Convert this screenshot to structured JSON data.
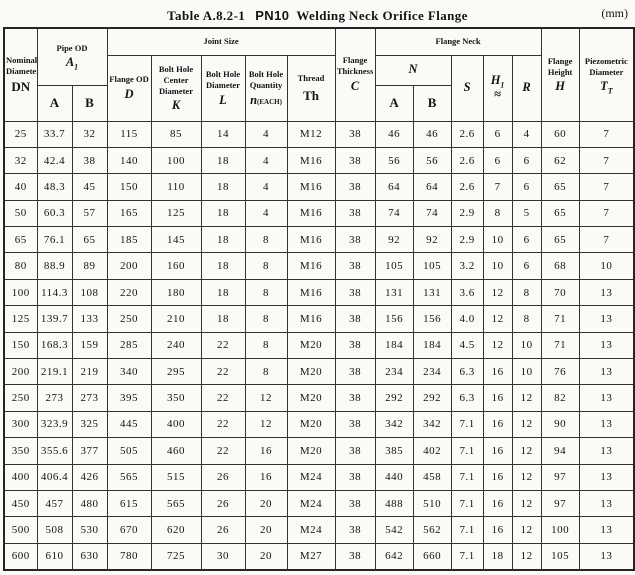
{
  "title": {
    "table_no": "Table A.8.2-1",
    "pn": "PN10",
    "name": "Welding Neck Orifice Flange",
    "unit": "(mm)"
  },
  "header": {
    "nominal_diameter": {
      "line1": "Nominal",
      "line2": "Diameter",
      "symbol": "DN"
    },
    "pipe_od": {
      "label": "Pipe OD",
      "symbol": "A",
      "sub": "1",
      "col_a": "A",
      "col_b": "B"
    },
    "joint_size": {
      "label": "Joint Size",
      "flange_od": {
        "label": "Flange OD",
        "symbol": "D"
      },
      "bolt_hole_center": {
        "line1": "Bolt Hole",
        "line2": "Center",
        "line3": "Diameter",
        "symbol": "K"
      },
      "bolt_hole_diameter": {
        "line1": "Bolt Hole",
        "line2": "Diameter",
        "symbol": "L"
      },
      "bolt_hole_quantity": {
        "line1": "Bolt Hole",
        "line2": "Quantity",
        "symbol": "n",
        "suffix": "(EACH)"
      },
      "thread": {
        "label": "Thread",
        "symbol": "Th"
      }
    },
    "flange_thickness": {
      "line1": "Flange",
      "line2": "Thickness",
      "symbol": "C"
    },
    "flange_neck": {
      "label": "Flange Neck",
      "n": {
        "symbol": "N",
        "col_a": "A",
        "col_b": "B"
      },
      "s": "S",
      "h1": {
        "symbol": "H",
        "sub": "1",
        "approx": "≈"
      },
      "r": "R"
    },
    "flange_height": {
      "line1": "Flange",
      "line2": "Height",
      "symbol": "H"
    },
    "piezometric": {
      "line1": "Piezometric",
      "line2": "Diameter",
      "symbol": "T",
      "sub": "T"
    }
  },
  "columns": [
    "dn",
    "pipe-od-a",
    "pipe-od-b",
    "flange-od-d",
    "bolt-hole-center-k",
    "bolt-hole-dia-l",
    "bolt-hole-qty-n",
    "thread-th",
    "thickness-c",
    "neck-n-a",
    "neck-n-b",
    "neck-s",
    "neck-h1",
    "neck-r",
    "height-h",
    "piezometric-tt"
  ],
  "rows": [
    [
      "25",
      "33.7",
      "32",
      "115",
      "85",
      "14",
      "4",
      "M12",
      "38",
      "46",
      "46",
      "2.6",
      "6",
      "4",
      "60",
      "7"
    ],
    [
      "32",
      "42.4",
      "38",
      "140",
      "100",
      "18",
      "4",
      "M16",
      "38",
      "56",
      "56",
      "2.6",
      "6",
      "6",
      "62",
      "7"
    ],
    [
      "40",
      "48.3",
      "45",
      "150",
      "110",
      "18",
      "4",
      "M16",
      "38",
      "64",
      "64",
      "2.6",
      "7",
      "6",
      "65",
      "7"
    ],
    [
      "50",
      "60.3",
      "57",
      "165",
      "125",
      "18",
      "4",
      "M16",
      "38",
      "74",
      "74",
      "2.9",
      "8",
      "5",
      "65",
      "7"
    ],
    [
      "65",
      "76.1",
      "65",
      "185",
      "145",
      "18",
      "8",
      "M16",
      "38",
      "92",
      "92",
      "2.9",
      "10",
      "6",
      "65",
      "7"
    ],
    [
      "80",
      "88.9",
      "89",
      "200",
      "160",
      "18",
      "8",
      "M16",
      "38",
      "105",
      "105",
      "3.2",
      "10",
      "6",
      "68",
      "10"
    ],
    [
      "100",
      "114.3",
      "108",
      "220",
      "180",
      "18",
      "8",
      "M16",
      "38",
      "131",
      "131",
      "3.6",
      "12",
      "8",
      "70",
      "13"
    ],
    [
      "125",
      "139.7",
      "133",
      "250",
      "210",
      "18",
      "8",
      "M16",
      "38",
      "156",
      "156",
      "4.0",
      "12",
      "8",
      "71",
      "13"
    ],
    [
      "150",
      "168.3",
      "159",
      "285",
      "240",
      "22",
      "8",
      "M20",
      "38",
      "184",
      "184",
      "4.5",
      "12",
      "10",
      "71",
      "13"
    ],
    [
      "200",
      "219.1",
      "219",
      "340",
      "295",
      "22",
      "8",
      "M20",
      "38",
      "234",
      "234",
      "6.3",
      "16",
      "10",
      "76",
      "13"
    ],
    [
      "250",
      "273",
      "273",
      "395",
      "350",
      "22",
      "12",
      "M20",
      "38",
      "292",
      "292",
      "6.3",
      "16",
      "12",
      "82",
      "13"
    ],
    [
      "300",
      "323.9",
      "325",
      "445",
      "400",
      "22",
      "12",
      "M20",
      "38",
      "342",
      "342",
      "7.1",
      "16",
      "12",
      "90",
      "13"
    ],
    [
      "350",
      "355.6",
      "377",
      "505",
      "460",
      "22",
      "16",
      "M20",
      "38",
      "385",
      "402",
      "7.1",
      "16",
      "12",
      "94",
      "13"
    ],
    [
      "400",
      "406.4",
      "426",
      "565",
      "515",
      "26",
      "16",
      "M24",
      "38",
      "440",
      "458",
      "7.1",
      "16",
      "12",
      "97",
      "13"
    ],
    [
      "450",
      "457",
      "480",
      "615",
      "565",
      "26",
      "20",
      "M24",
      "38",
      "488",
      "510",
      "7.1",
      "16",
      "12",
      "97",
      "13"
    ],
    [
      "500",
      "508",
      "530",
      "670",
      "620",
      "26",
      "20",
      "M24",
      "38",
      "542",
      "562",
      "7.1",
      "16",
      "12",
      "100",
      "13"
    ],
    [
      "600",
      "610",
      "630",
      "780",
      "725",
      "30",
      "20",
      "M27",
      "38",
      "642",
      "660",
      "7.1",
      "18",
      "12",
      "105",
      "13"
    ]
  ]
}
